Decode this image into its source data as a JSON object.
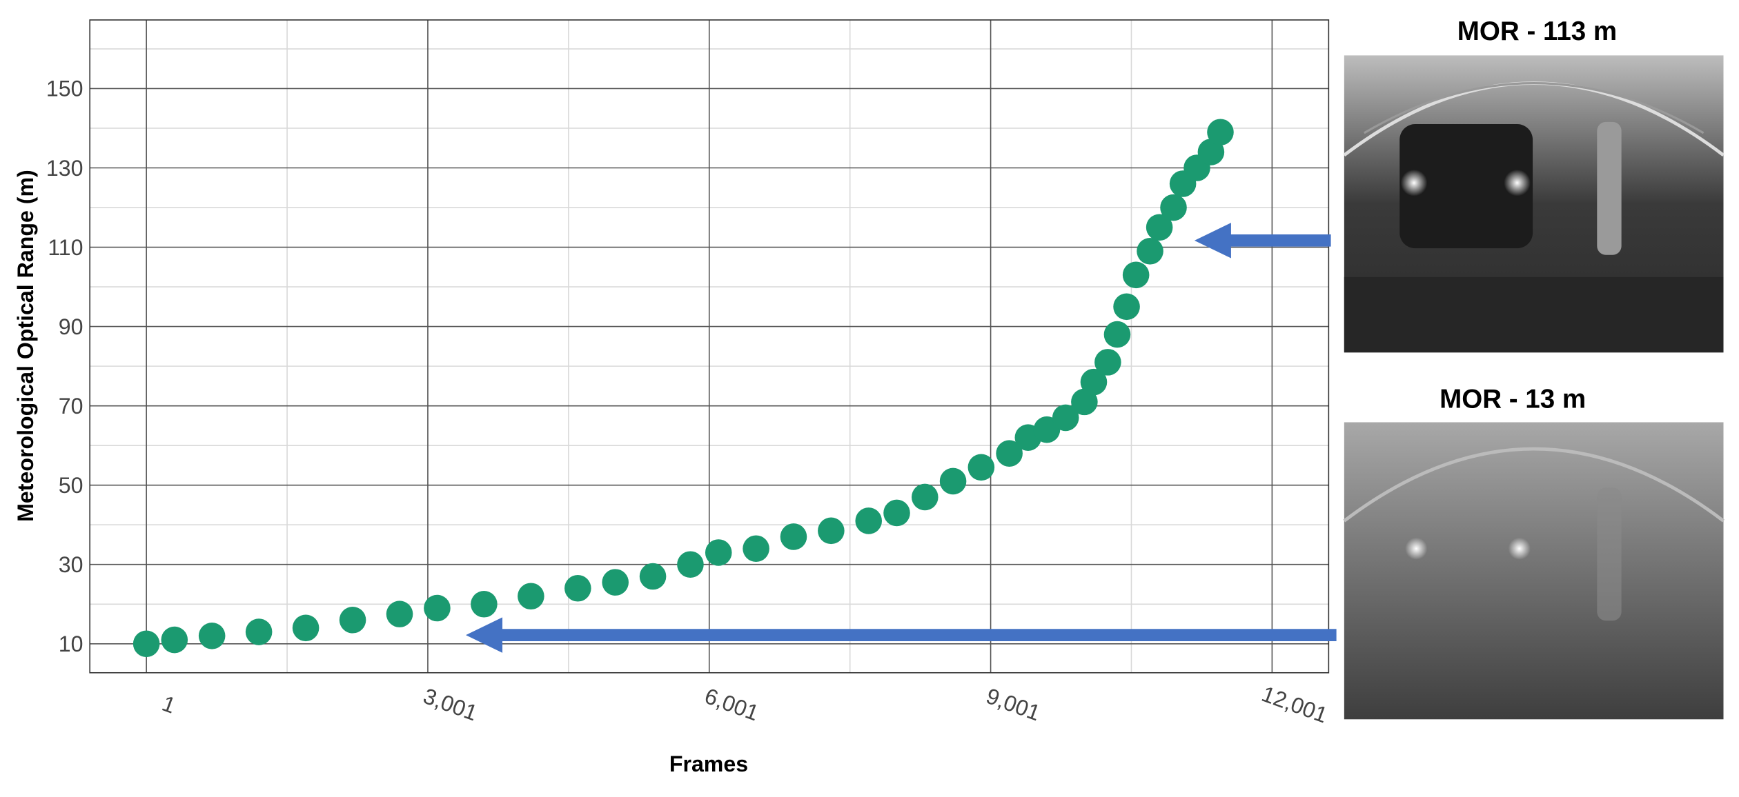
{
  "chart_data": {
    "type": "scatter",
    "xlabel": "Frames",
    "ylabel": "Meteorological Optical Range (m)",
    "x": [
      1,
      300,
      700,
      1200,
      1700,
      2200,
      2700,
      3100,
      3600,
      4100,
      4600,
      5000,
      5400,
      5800,
      6100,
      6500,
      6900,
      7300,
      7700,
      8000,
      8300,
      8600,
      8900,
      9200,
      9400,
      9600,
      9800,
      10000,
      10100,
      10250,
      10350,
      10450,
      10550,
      10700,
      10800,
      10950,
      11050,
      11200,
      11350,
      11450
    ],
    "series": [
      {
        "color": "#1b9a70",
        "values": [
          10,
          11,
          12,
          13,
          14,
          16,
          17.5,
          19,
          20,
          22,
          24,
          25.5,
          27,
          30,
          33,
          34,
          37,
          38.5,
          41,
          43,
          47,
          51,
          54.5,
          58,
          62,
          64,
          67,
          71,
          76,
          81,
          88,
          95,
          103,
          109,
          115,
          120,
          126,
          130,
          134,
          139
        ]
      }
    ],
    "xlim": [
      -602,
      12604
    ],
    "ylim": [
      2.7,
      167.3
    ],
    "xticks": [
      1,
      {
        "value": 3001,
        "label": "3,001"
      },
      {
        "value": 6001,
        "label": "6,001"
      },
      {
        "value": 9001,
        "label": "9,001"
      },
      {
        "value": 12001,
        "label": "12,001"
      }
    ],
    "yticks": [
      10,
      30,
      50,
      70,
      90,
      110,
      130,
      150
    ],
    "x_minor_grid": [
      1501,
      4501,
      7501,
      10501
    ],
    "y_minor_grid": [
      20,
      40,
      60,
      80,
      100,
      120,
      140,
      160
    ],
    "grid": true
  },
  "images": [
    {
      "title": "MOR - 113 m"
    },
    {
      "title": "MOR - 13 m"
    }
  ]
}
